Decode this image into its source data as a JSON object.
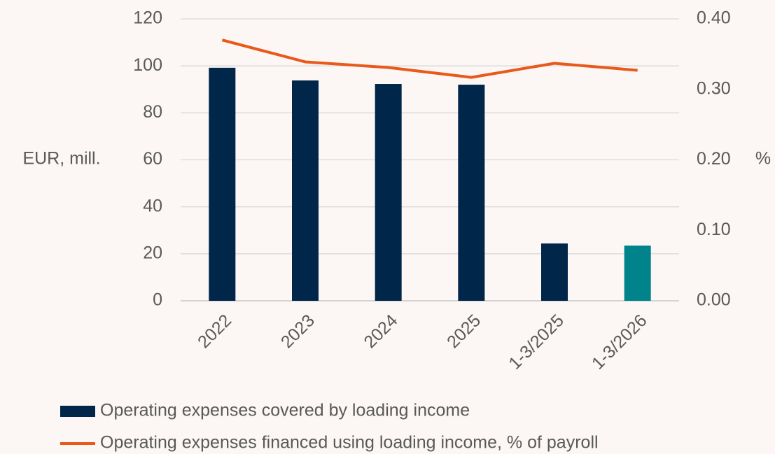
{
  "chart_data": {
    "type": "bar_line",
    "categories": [
      "2022",
      "2023",
      "2024",
      "2025",
      "1-3/2025",
      "1-3/2026"
    ],
    "series": [
      {
        "name": "Operating expenses covered by loading income",
        "type": "bar",
        "color": "#00264a",
        "colors": [
          "#00264a",
          "#00264a",
          "#00264a",
          "#00264a",
          "#00264a",
          "#00838a"
        ],
        "values": [
          99.2,
          93.8,
          92.3,
          92.0,
          24.4,
          23.5
        ]
      },
      {
        "name": "Operating expenses financed using loading income, % of payroll",
        "type": "line",
        "color": "#e8591a",
        "axis": "y2",
        "values": [
          0.37,
          0.339,
          0.331,
          0.317,
          0.337,
          0.327
        ]
      }
    ],
    "ylabel": "EUR, mill.",
    "y2label": "%",
    "ylim": [
      0,
      120
    ],
    "yticks": [
      0,
      20,
      40,
      60,
      80,
      100,
      120
    ],
    "y2lim": [
      0,
      0.4
    ],
    "y2ticks": [
      {
        "value": 0,
        "label": "0.00"
      },
      {
        "value": 0.1,
        "label": "0.10"
      },
      {
        "value": 0.2,
        "label": "0.20"
      },
      {
        "value": 0.3,
        "label": "0.30"
      },
      {
        "value": 0.4,
        "label": "0.40"
      }
    ],
    "grid": true,
    "legend": "bottom"
  }
}
